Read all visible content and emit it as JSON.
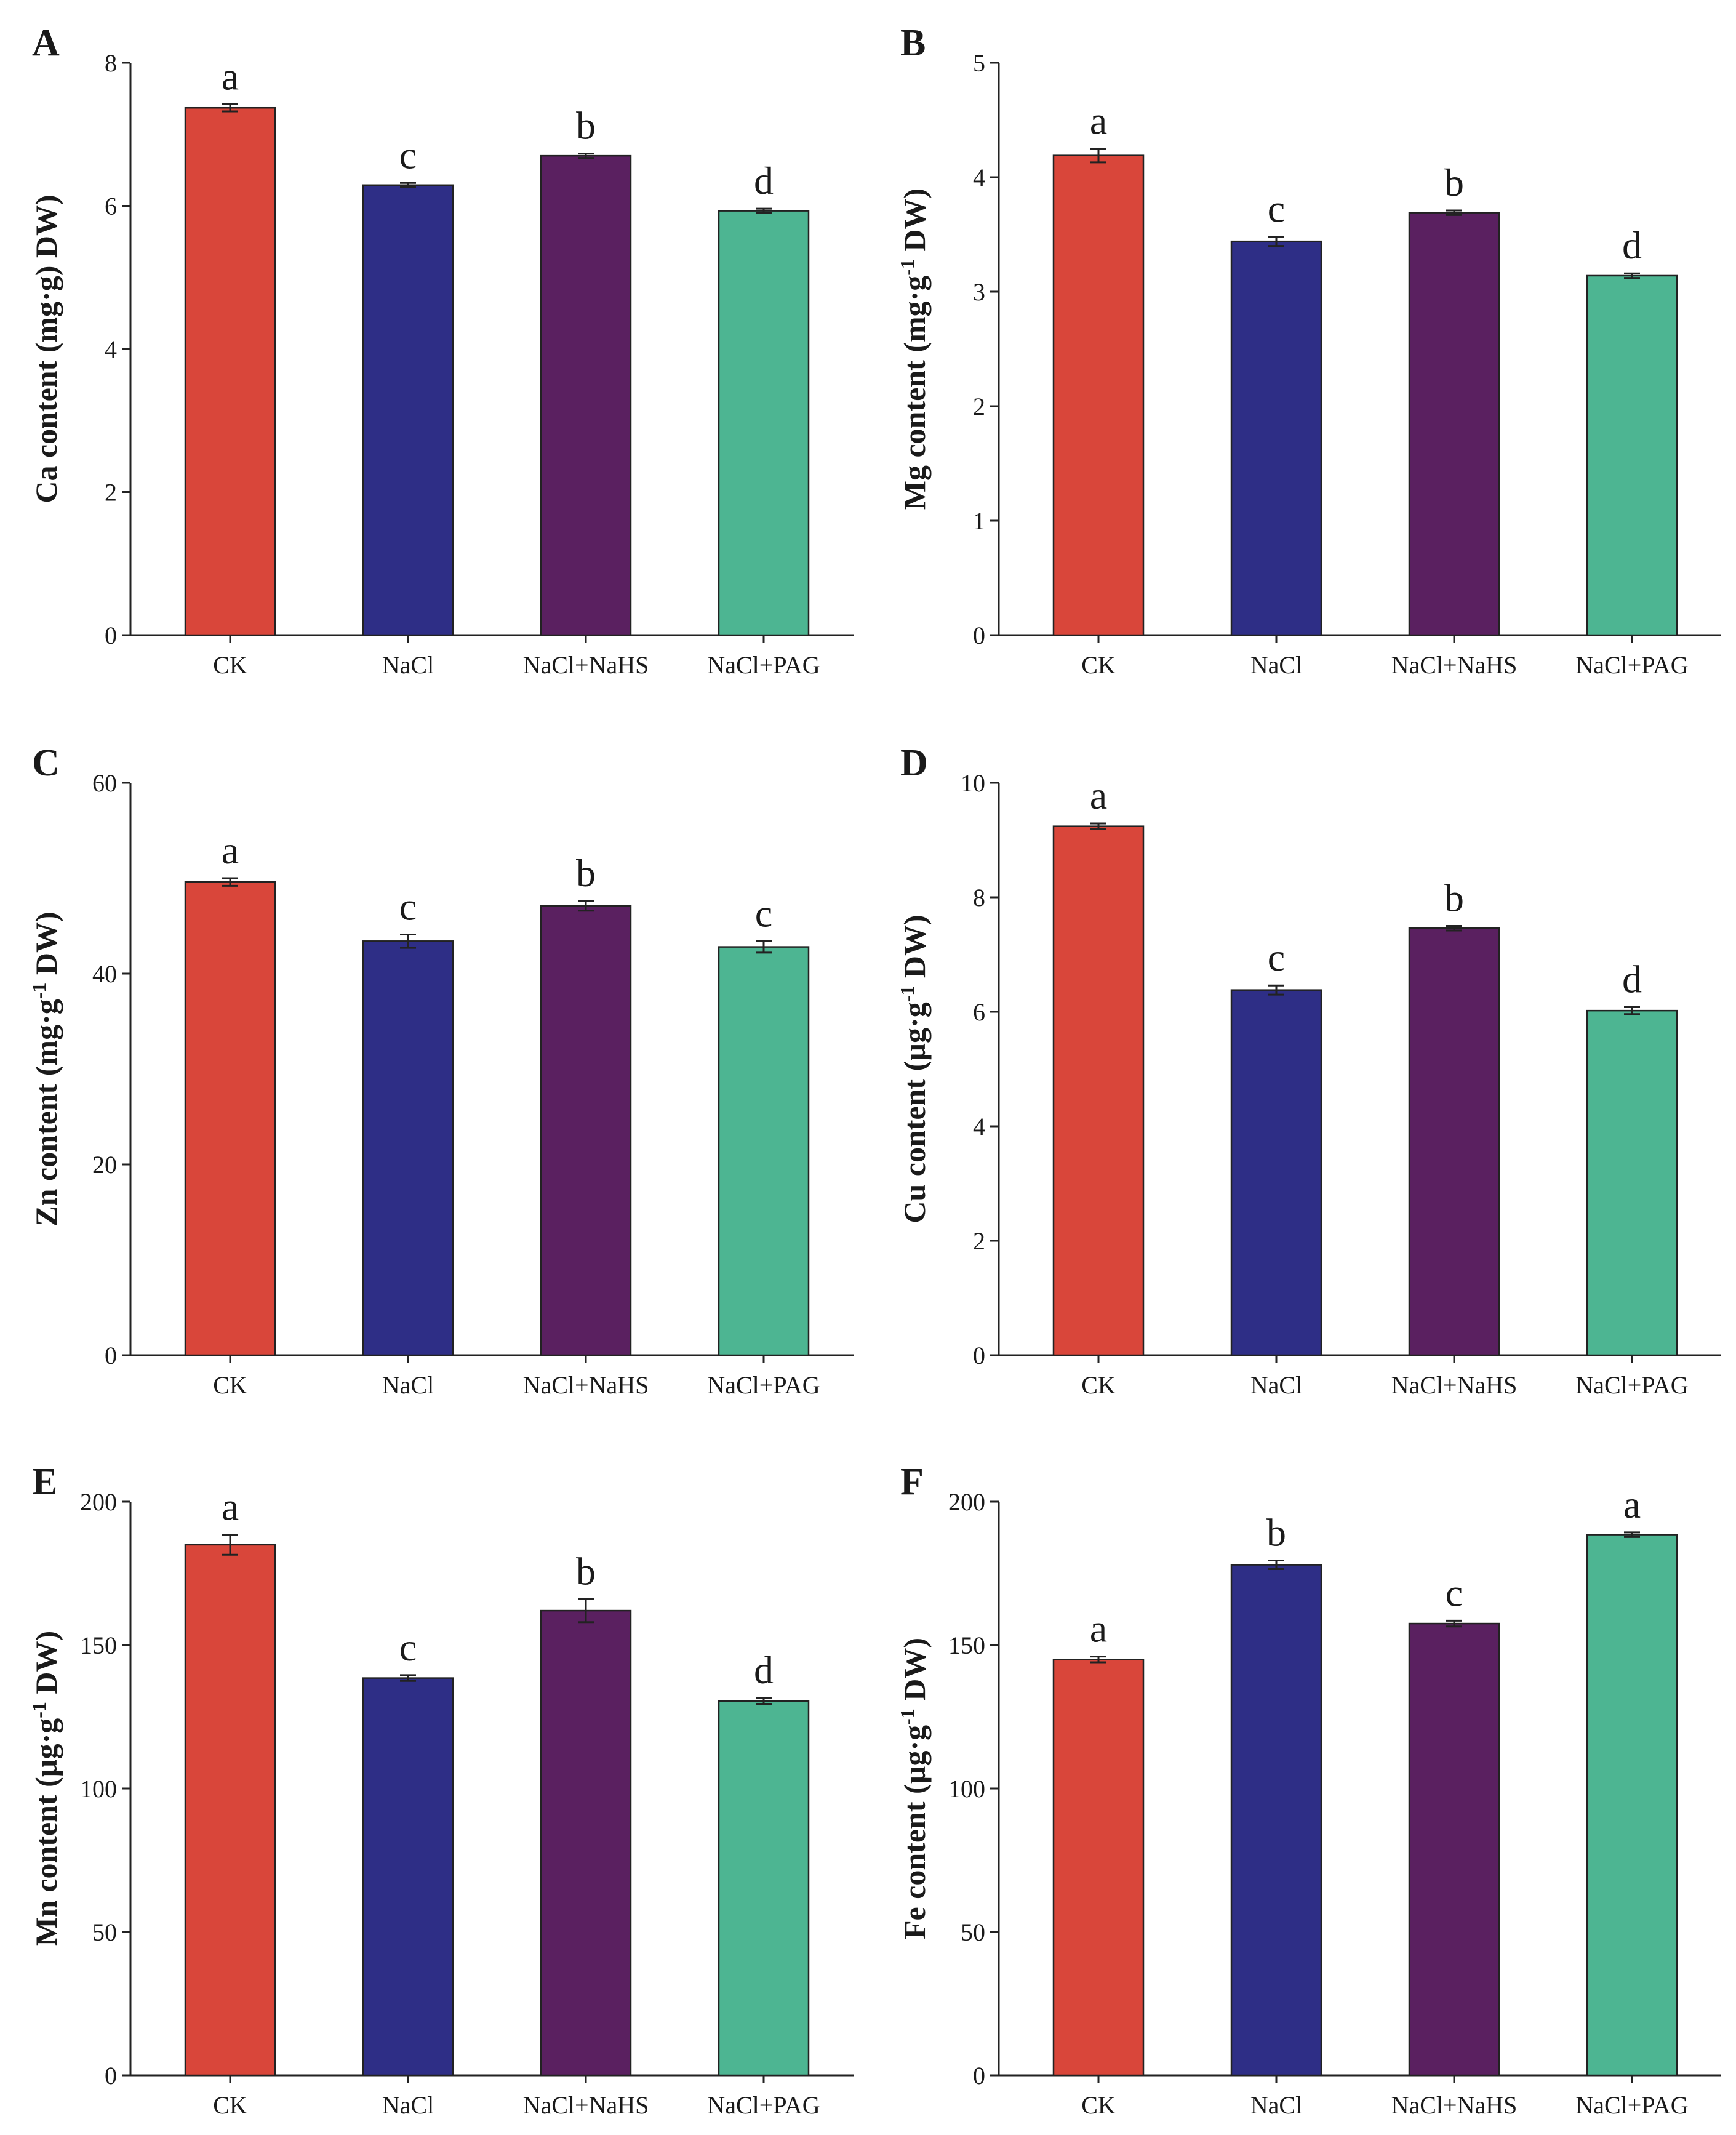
{
  "colors": {
    "CK": "#d9463a",
    "NaCl": "#2e2e86",
    "NaCl+NaHS": "#5a2060",
    "NaCl+PAG": "#4db592",
    "axis": "#222222"
  },
  "chart_data": [
    {
      "panel": "A",
      "type": "bar",
      "categories": [
        "CK",
        "NaCl",
        "NaCl+NaHS",
        "NaCl+PAG"
      ],
      "values": [
        7.37,
        6.29,
        6.7,
        5.93
      ],
      "errors": [
        0.05,
        0.03,
        0.03,
        0.03
      ],
      "significance": [
        "a",
        "c",
        "b",
        "d"
      ],
      "ylabel_main": "Ca content (mg·g",
      "ylabel_sup": "",
      "ylabel_tail": ") DW)",
      "ylim": [
        0,
        8
      ],
      "yticks": [
        "0",
        "2",
        "4",
        "6",
        "8"
      ]
    },
    {
      "panel": "B",
      "type": "bar",
      "categories": [
        "CK",
        "NaCl",
        "NaCl+NaHS",
        "NaCl+PAG"
      ],
      "values": [
        4.19,
        3.44,
        3.69,
        3.14
      ],
      "errors": [
        0.06,
        0.04,
        0.02,
        0.02
      ],
      "significance": [
        "a",
        "c",
        "b",
        "d"
      ],
      "ylabel_main": "Mg content (mg·g",
      "ylabel_sup": "-1",
      "ylabel_tail": " DW)",
      "ylim": [
        0,
        5
      ],
      "yticks": [
        "0",
        "1",
        "2",
        "3",
        "4",
        "5"
      ]
    },
    {
      "panel": "C",
      "type": "bar",
      "categories": [
        "CK",
        "NaCl",
        "NaCl+NaHS",
        "NaCl+PAG"
      ],
      "values": [
        49.6,
        43.4,
        47.1,
        42.8
      ],
      "errors": [
        0.4,
        0.7,
        0.5,
        0.6
      ],
      "significance": [
        "a",
        "c",
        "b",
        "c"
      ],
      "ylabel_main": "Zn content (mg·g",
      "ylabel_sup": "-1",
      "ylabel_tail": " DW)",
      "ylim": [
        0,
        60
      ],
      "yticks": [
        "0",
        "20",
        "40",
        "60"
      ]
    },
    {
      "panel": "D",
      "type": "bar",
      "categories": [
        "CK",
        "NaCl",
        "NaCl+NaHS",
        "NaCl+PAG"
      ],
      "values": [
        9.24,
        6.38,
        7.46,
        6.02
      ],
      "errors": [
        0.05,
        0.08,
        0.04,
        0.06
      ],
      "significance": [
        "a",
        "c",
        "b",
        "d"
      ],
      "ylabel_main": "Cu content (µg·g",
      "ylabel_sup": "-1",
      "ylabel_tail": " DW)",
      "ylim": [
        0,
        10
      ],
      "yticks": [
        "0",
        "2",
        "4",
        "6",
        "8",
        "10"
      ]
    },
    {
      "panel": "E",
      "type": "bar",
      "categories": [
        "CK",
        "NaCl",
        "NaCl+NaHS",
        "NaCl+PAG"
      ],
      "values": [
        185,
        138.5,
        162,
        130.5
      ],
      "errors": [
        3.5,
        1.0,
        4.0,
        1.0
      ],
      "significance": [
        "a",
        "c",
        "b",
        "d"
      ],
      "ylabel_main": "Mn content (µg·g",
      "ylabel_sup": "-1",
      "ylabel_tail": " DW)",
      "ylim": [
        0,
        200
      ],
      "yticks": [
        "0",
        "50",
        "100",
        "150",
        "200"
      ]
    },
    {
      "panel": "F",
      "type": "bar",
      "categories": [
        "CK",
        "NaCl",
        "NaCl+NaHS",
        "NaCl+PAG"
      ],
      "values": [
        145,
        178,
        157.5,
        188.5
      ],
      "errors": [
        1.0,
        1.5,
        1.0,
        0.8
      ],
      "significance": [
        "a",
        "b",
        "c",
        "a"
      ],
      "ylabel_main": "Fe content (µg·g",
      "ylabel_sup": "-1",
      "ylabel_tail": " DW)",
      "ylim": [
        0,
        200
      ],
      "yticks": [
        "0",
        "50",
        "100",
        "150",
        "200"
      ]
    }
  ]
}
